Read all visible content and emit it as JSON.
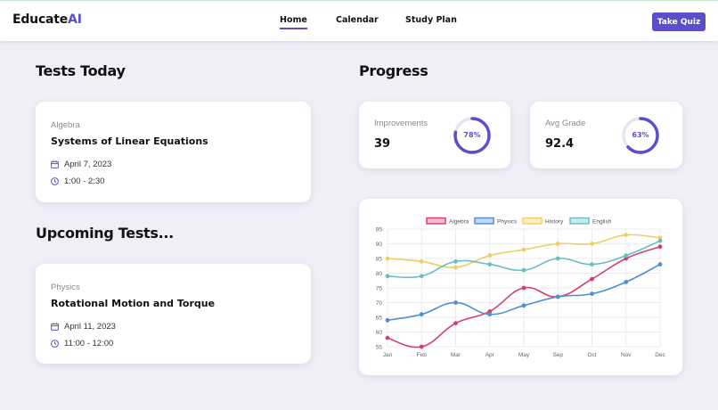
{
  "header": {
    "brand_main": "Educate",
    "brand_accent": "AI",
    "nav": [
      {
        "label": "Home",
        "active": true
      },
      {
        "label": "Calendar",
        "active": false
      },
      {
        "label": "Study Plan",
        "active": false
      }
    ],
    "cta_label": "Take Quiz"
  },
  "tests_today": {
    "title": "Tests Today",
    "card": {
      "subject": "Algebra",
      "name": "Systems of Linear Equations",
      "date": "April 7, 2023",
      "time": "1:00 - 2:30"
    }
  },
  "upcoming_tests": {
    "title": "Upcoming Tests...",
    "card": {
      "subject": "Physics",
      "name": "Rotational Motion and Torque",
      "date": "April 11, 2023",
      "time": "11:00 - 12:00"
    }
  },
  "progress": {
    "title": "Progress",
    "stats": [
      {
        "label": "Improvements",
        "value": "39",
        "ring_label": "78%",
        "ring_fraction": 0.78
      },
      {
        "label": "Avg Grade",
        "value": "92.4",
        "ring_label": "63%",
        "ring_fraction": 0.63
      }
    ]
  },
  "colors": {
    "accent": "#5b4fc9",
    "algebra": "#d63d6a",
    "physics": "#4d8fd1",
    "history": "#f2cd63",
    "english": "#6bbcc4"
  },
  "icons": {
    "date": "calendar-icon",
    "time": "clock-icon"
  },
  "chart_data": {
    "type": "line",
    "categories": [
      "Jan",
      "Feb",
      "Mar",
      "Apr",
      "May",
      "Sep",
      "Oct",
      "Nov",
      "Dec"
    ],
    "yticks": [
      55,
      60,
      65,
      70,
      75,
      80,
      85,
      90,
      95
    ],
    "ylim": [
      55,
      95
    ],
    "grid": true,
    "legend_position": "top",
    "series": [
      {
        "name": "Algebra",
        "color": "#d63d6a",
        "values": [
          58,
          55,
          63,
          67,
          75,
          72,
          78,
          85,
          89
        ]
      },
      {
        "name": "Physics",
        "color": "#4d8fd1",
        "values": [
          64,
          66,
          70,
          66,
          69,
          72,
          73,
          77,
          83
        ]
      },
      {
        "name": "History",
        "color": "#f2cd63",
        "values": [
          85,
          84,
          82,
          86,
          88,
          90,
          90,
          93,
          92
        ]
      },
      {
        "name": "English",
        "color": "#6bbcc4",
        "values": [
          79,
          79,
          84,
          83,
          81,
          85,
          83,
          86,
          91
        ]
      }
    ]
  }
}
